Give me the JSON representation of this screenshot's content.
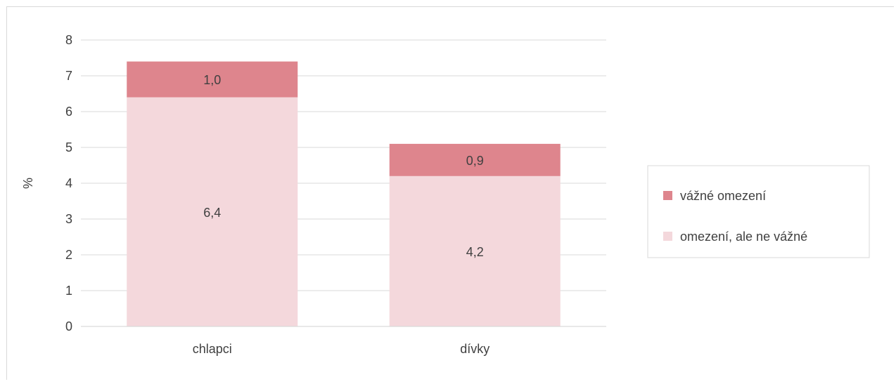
{
  "chart_data": {
    "type": "bar",
    "stacked": true,
    "categories": [
      "chlapci",
      "dívky"
    ],
    "series": [
      {
        "name": "omezení, ale ne vážné",
        "values": [
          6.4,
          4.2
        ],
        "value_labels": [
          "6,4",
          "4,2"
        ],
        "color": "#f4d8dc"
      },
      {
        "name": "vážné omezení",
        "values": [
          1.0,
          0.9
        ],
        "value_labels": [
          "1,0",
          "0,9"
        ],
        "color": "#de858d"
      }
    ],
    "ylabel": "%",
    "xlabel": "",
    "ylim": [
      0,
      8
    ],
    "yticks": [
      "0",
      "1",
      "2",
      "3",
      "4",
      "5",
      "6",
      "7",
      "8"
    ],
    "grid": true,
    "legend_position": "right",
    "gridline_color": "#d9d9d9",
    "text_color": "#404040"
  }
}
